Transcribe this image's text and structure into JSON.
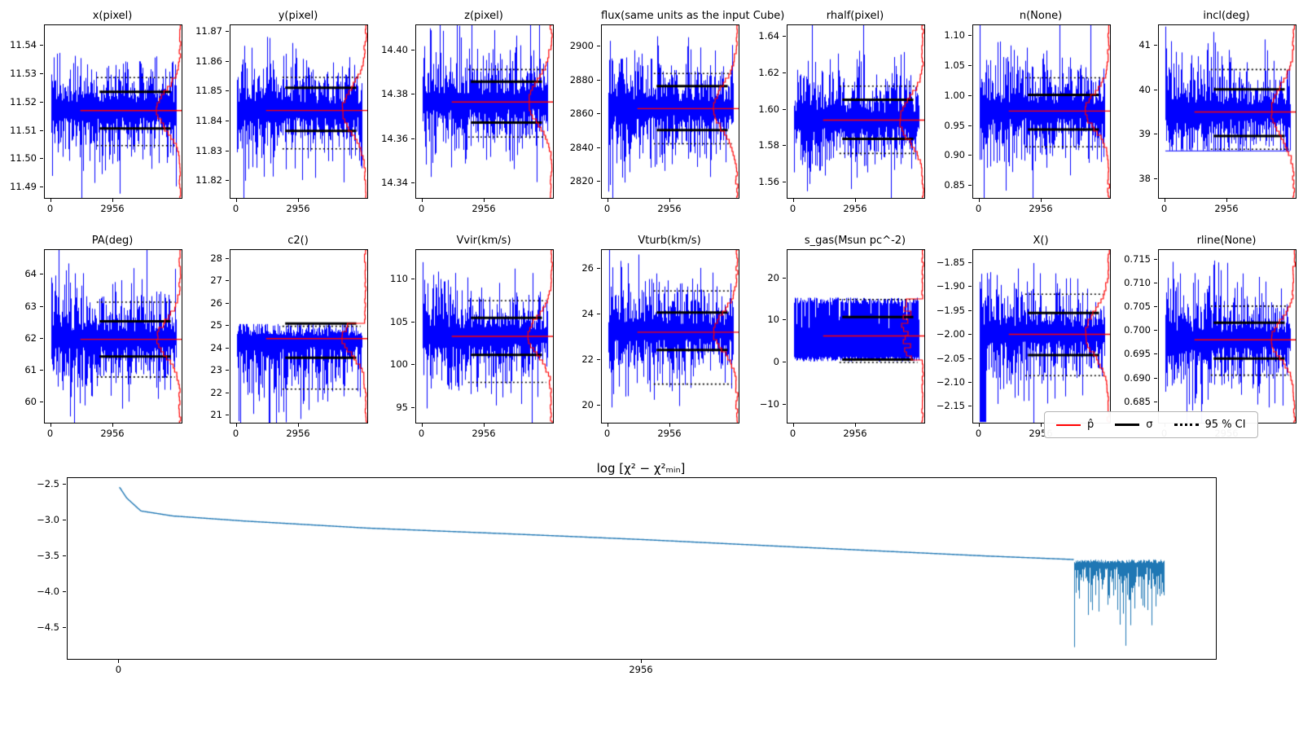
{
  "style": {
    "trace_color": "#0000ff",
    "accent_red": "#ff0000",
    "sigma_color": "#000000",
    "chi2_line_color": "#1f77b4",
    "background": "#ffffff"
  },
  "legend": {
    "entries": [
      {
        "label": "p̂"
      },
      {
        "label": "σ"
      },
      {
        "label": "95 % CI"
      }
    ]
  },
  "chart_data": {
    "type": "mcmc-trace-grid",
    "x_max": 5912,
    "x_ticks": [
      0,
      2956
    ],
    "x_tick_labels": [
      "0",
      "2956"
    ],
    "panels": [
      {
        "title": "x(pixel)",
        "ylim": [
          11.486,
          11.547
        ],
        "y_ticks": [
          11.49,
          11.5,
          11.51,
          11.52,
          11.53,
          11.54
        ],
        "y_tick_labels": [
          "11.49",
          "11.50",
          "11.51",
          "11.52",
          "11.53",
          "11.54"
        ],
        "median": 11.517,
        "sigma": [
          11.5105,
          11.5235
        ],
        "ci": [
          11.5045,
          11.5285
        ],
        "s_hi": [
          0.0165,
          0.012
        ],
        "s_lo": [
          0.0165,
          0.012
        ],
        "hsig": 0.0068,
        "seed": 1
      },
      {
        "title": "y(pixel)",
        "ylim": [
          11.814,
          11.872
        ],
        "y_ticks": [
          11.82,
          11.83,
          11.84,
          11.85,
          11.86,
          11.87
        ],
        "y_tick_labels": [
          "11.82",
          "11.83",
          "11.84",
          "11.85",
          "11.86",
          "11.87"
        ],
        "median": 11.8435,
        "sigma": [
          11.8365,
          11.851
        ],
        "ci": [
          11.8305,
          11.8545
        ],
        "s_hi": [
          0.0157,
          0.0115
        ],
        "s_lo": [
          0.0157,
          0.0115
        ],
        "hsig": 0.0075,
        "seed": 2
      },
      {
        "title": "z(pixel)",
        "ylim": [
          14.333,
          14.411
        ],
        "y_ticks": [
          14.34,
          14.36,
          14.38,
          14.4
        ],
        "y_tick_labels": [
          "14.34",
          "14.36",
          "14.38",
          "14.40"
        ],
        "median": 14.3765,
        "sigma": [
          14.367,
          14.3855
        ],
        "ci": [
          14.3605,
          14.391
        ],
        "s_hi": [
          0.021,
          0.0155
        ],
        "s_lo": [
          0.021,
          0.0155
        ],
        "hsig": 0.0095,
        "seed": 3
      },
      {
        "title": "flux(same units as the input Cube)",
        "ylim": [
          2810,
          2912
        ],
        "y_ticks": [
          2820,
          2840,
          2860,
          2880,
          2900
        ],
        "y_tick_labels": [
          "2820",
          "2840",
          "2860",
          "2880",
          "2900"
        ],
        "median": 2863,
        "sigma": [
          2850,
          2876
        ],
        "ci": [
          2842,
          2883.5
        ],
        "s_hi": [
          27,
          20
        ],
        "s_lo": [
          27,
          20
        ],
        "hsig": 13.5,
        "seed": 4
      },
      {
        "title": "rhalf(pixel)",
        "ylim": [
          1.551,
          1.646
        ],
        "y_ticks": [
          1.56,
          1.58,
          1.6,
          1.62,
          1.64
        ],
        "y_tick_labels": [
          "1.56",
          "1.58",
          "1.60",
          "1.62",
          "1.64"
        ],
        "median": 1.594,
        "sigma": [
          1.5835,
          1.605
        ],
        "ci": [
          1.5755,
          1.6125
        ],
        "s_hi": [
          0.026,
          0.019
        ],
        "s_lo": [
          0.026,
          0.019
        ],
        "hsig": 0.011,
        "seed": 5
      },
      {
        "title": "n(None)",
        "ylim": [
          0.828,
          1.117
        ],
        "y_ticks": [
          0.85,
          0.9,
          0.95,
          1.0,
          1.05,
          1.1
        ],
        "y_tick_labels": [
          "0.85",
          "0.90",
          "0.95",
          "1.00",
          "1.05",
          "1.10"
        ],
        "median": 0.974,
        "sigma": [
          0.9425,
          1.0005
        ],
        "ci": [
          0.9135,
          1.029
        ],
        "s_hi": [
          0.078,
          0.057
        ],
        "s_lo": [
          0.078,
          0.057
        ],
        "hsig": 0.03,
        "seed": 6
      },
      {
        "title": "incl(deg)",
        "ylim": [
          37.55,
          41.45
        ],
        "y_ticks": [
          38,
          39,
          40,
          41
        ],
        "y_tick_labels": [
          "38",
          "39",
          "40",
          "41"
        ],
        "median": 39.5,
        "sigma": [
          38.95,
          40.0
        ],
        "ci": [
          38.65,
          40.45
        ],
        "s_hi": [
          1.05,
          0.78
        ],
        "s_lo": [
          1.05,
          0.78
        ],
        "hsig": 0.54,
        "floor": 38.62,
        "seed": 7
      },
      {
        "title": "PA(deg)",
        "ylim": [
          59.35,
          64.75
        ],
        "y_ticks": [
          60,
          61,
          62,
          63,
          64
        ],
        "y_tick_labels": [
          "60",
          "61",
          "62",
          "63",
          "64"
        ],
        "median": 61.97,
        "sigma": [
          61.42,
          62.52
        ],
        "ci": [
          60.78,
          63.12
        ],
        "s_hi": [
          1.46,
          1.07
        ],
        "s_lo": [
          1.46,
          1.07
        ],
        "hsig": 0.56,
        "seed": 8
      },
      {
        "title": "c2()",
        "ylim": [
          20.65,
          28.35
        ],
        "y_ticks": [
          21,
          22,
          23,
          24,
          25,
          26,
          27,
          28
        ],
        "y_tick_labels": [
          "21",
          "22",
          "23",
          "24",
          "25",
          "26",
          "27",
          "28"
        ],
        "median": 24.42,
        "sigma": [
          23.55,
          25.07
        ],
        "ci": [
          22.15,
          24.95
        ],
        "s_hi": [
          0.6,
          0.5
        ],
        "s_lo": [
          2.6,
          1.9
        ],
        "clamp_high": 25.05,
        "hsig": 0.75,
        "seed": 9
      },
      {
        "title": "Vvir(km/s)",
        "ylim": [
          93.2,
          113.3
        ],
        "y_ticks": [
          95,
          100,
          105,
          110
        ],
        "y_tick_labels": [
          "95",
          "100",
          "105",
          "110"
        ],
        "median": 103.3,
        "sigma": [
          101.1,
          105.4
        ],
        "ci": [
          97.9,
          107.4
        ],
        "s_hi": [
          5.4,
          4.0
        ],
        "s_lo": [
          5.4,
          4.0
        ],
        "hsig": 2.2,
        "seed": 10
      },
      {
        "title": "Vturb(km/s)",
        "ylim": [
          19.2,
          26.8
        ],
        "y_ticks": [
          20,
          22,
          24,
          26
        ],
        "y_tick_labels": [
          "20",
          "22",
          "24",
          "26"
        ],
        "median": 23.2,
        "sigma": [
          22.4,
          24.05
        ],
        "ci": [
          20.9,
          25.0
        ],
        "s_hi": [
          2.05,
          1.5
        ],
        "s_lo": [
          2.05,
          1.5
        ],
        "hsig": 0.85,
        "seed": 11
      },
      {
        "title": "s_gas(Msun pc^-2)",
        "ylim": [
          -14.5,
          26.5
        ],
        "y_ticks": [
          -10,
          0,
          10,
          20
        ],
        "y_tick_labels": [
          "−10",
          "0",
          "10",
          "20"
        ],
        "median": 6.2,
        "sigma": [
          0.5,
          10.6
        ],
        "ci": [
          -0.2,
          14.75
        ],
        "mode": "uniform",
        "hist": "uniform",
        "clamp_low": 0,
        "clamp_high": 15.2,
        "s_hi": [
          1,
          1
        ],
        "s_lo": [
          1,
          1
        ],
        "hsig": 5.2,
        "seed": 12
      },
      {
        "title": "X()",
        "ylim": [
          -2.185,
          -1.825
        ],
        "y_ticks": [
          -2.15,
          -2.1,
          -2.05,
          -2.0,
          -1.95,
          -1.9,
          -1.85
        ],
        "y_tick_labels": [
          "−2.15",
          "−2.10",
          "−2.05",
          "−2.00",
          "−1.95",
          "−1.90",
          "−1.85"
        ],
        "median": -2.0,
        "sigma": [
          -2.044,
          -1.956
        ],
        "ci": [
          -2.087,
          -1.917
        ],
        "s_hi": [
          0.097,
          0.071
        ],
        "s_lo": [
          0.097,
          0.071
        ],
        "hsig": 0.045,
        "dip_frac": 0.05,
        "seed": 13
      },
      {
        "title": "rline(None)",
        "ylim": [
          0.6805,
          0.7168
        ],
        "y_ticks": [
          0.685,
          0.69,
          0.695,
          0.7,
          0.705,
          0.71,
          0.715
        ],
        "y_tick_labels": [
          "0.685",
          "0.690",
          "0.695",
          "0.700",
          "0.705",
          "0.710",
          "0.715"
        ],
        "median": 0.698,
        "sigma": [
          0.694,
          0.7015
        ],
        "ci": [
          0.6905,
          0.705
        ],
        "s_hi": [
          0.0099,
          0.0073
        ],
        "s_lo": [
          0.0099,
          0.0073
        ],
        "hsig": 0.0038,
        "seed": 14
      }
    ],
    "chi2_panel": {
      "type": "line",
      "title": "log [χ² − χ²ₘᵢₙ]",
      "ylim": [
        -4.95,
        -2.42
      ],
      "y_ticks": [
        -2.5,
        -3.0,
        -3.5,
        -4.0,
        -4.5
      ],
      "y_tick_labels": [
        "−2.5",
        "−3.0",
        "−3.5",
        "−4.0",
        "−4.5"
      ],
      "x_ticks": [
        0,
        2956
      ],
      "x_tick_labels": [
        "0",
        "2956"
      ],
      "x_max": 5912,
      "keypoints": [
        [
          0,
          -2.55
        ],
        [
          40,
          -2.7
        ],
        [
          120,
          -2.88
        ],
        [
          300,
          -2.95
        ],
        [
          700,
          -3.02
        ],
        [
          1400,
          -3.12
        ],
        [
          2200,
          -3.2
        ],
        [
          2956,
          -3.28
        ],
        [
          3700,
          -3.37
        ],
        [
          4300,
          -3.44
        ],
        [
          4900,
          -3.51
        ],
        [
          5400,
          -3.56
        ]
      ],
      "noise": {
        "start": 5400,
        "top": -3.585,
        "base": -3.66,
        "amp": 0.28,
        "deep_min": -4.85,
        "seed": 99
      }
    }
  }
}
